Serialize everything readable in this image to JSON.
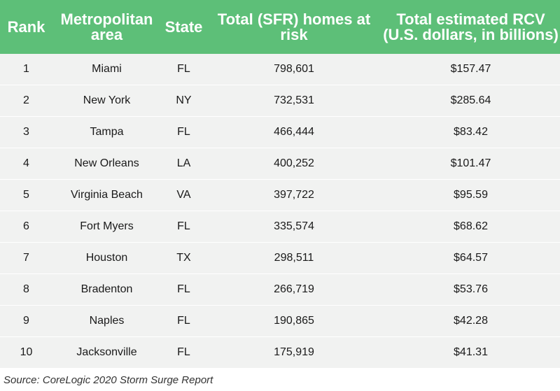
{
  "table": {
    "headers": {
      "rank": "Rank",
      "metro": "Metropolitan area",
      "state": "State",
      "homes": "Total (SFR) homes at risk",
      "rcv": "Total estimated RCV (U.S. dollars, in billions)"
    },
    "rows": [
      {
        "rank": "1",
        "metro": "Miami",
        "state": "FL",
        "homes": "798,601",
        "rcv": "$157.47"
      },
      {
        "rank": "2",
        "metro": "New York",
        "state": "NY",
        "homes": "732,531",
        "rcv": "$285.64"
      },
      {
        "rank": "3",
        "metro": "Tampa",
        "state": "FL",
        "homes": "466,444",
        "rcv": "$83.42"
      },
      {
        "rank": "4",
        "metro": "New Orleans",
        "state": "LA",
        "homes": "400,252",
        "rcv": "$101.47"
      },
      {
        "rank": "5",
        "metro": "Virginia Beach",
        "state": "VA",
        "homes": "397,722",
        "rcv": "$95.59"
      },
      {
        "rank": "6",
        "metro": "Fort Myers",
        "state": "FL",
        "homes": "335,574",
        "rcv": "$68.62"
      },
      {
        "rank": "7",
        "metro": "Houston",
        "state": "TX",
        "homes": "298,511",
        "rcv": "$64.57"
      },
      {
        "rank": "8",
        "metro": "Bradenton",
        "state": "FL",
        "homes": "266,719",
        "rcv": "$53.76"
      },
      {
        "rank": "9",
        "metro": "Naples",
        "state": "FL",
        "homes": "190,865",
        "rcv": "$42.28"
      },
      {
        "rank": "10",
        "metro": "Jacksonville",
        "state": "FL",
        "homes": "175,919",
        "rcv": "$41.31"
      }
    ]
  },
  "source": "Source: CoreLogic 2020 Storm Surge Report",
  "colors": {
    "header_bg": "#5dbf78",
    "row_bg": "#f1f2f1"
  }
}
